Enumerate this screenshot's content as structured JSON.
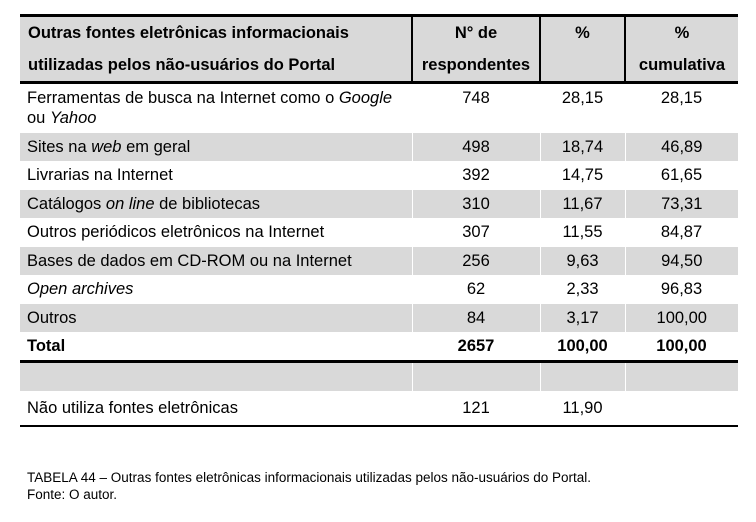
{
  "table": {
    "headers": {
      "col1_line1": "Outras fontes eletrônicas informacionais",
      "col1_line2": "utilizadas pelos não-usuários do Portal",
      "col2_line1": "N° de",
      "col2_line2": "respondentes",
      "col3_line1": "%",
      "col4_line1": "%",
      "col4_line2": "cumulativa"
    },
    "rows": [
      {
        "label_parts": [
          "Ferramentas de busca na Internet como o ",
          "Google",
          " ou ",
          "Yahoo"
        ],
        "respondents": "748",
        "percent": "28,15",
        "cumulative": "28,15"
      },
      {
        "label_parts": [
          "Sites na ",
          "web",
          " em geral"
        ],
        "respondents": "498",
        "percent": "18,74",
        "cumulative": "46,89"
      },
      {
        "label": "Livrarias na Internet",
        "respondents": "392",
        "percent": "14,75",
        "cumulative": "61,65"
      },
      {
        "label_parts": [
          "Catálogos ",
          "on line",
          " de bibliotecas"
        ],
        "respondents": "310",
        "percent": "11,67",
        "cumulative": "73,31"
      },
      {
        "label": "Outros periódicos eletrônicos na Internet",
        "respondents": "307",
        "percent": "11,55",
        "cumulative": "84,87"
      },
      {
        "label": "Bases de dados em CD-ROM ou na Internet",
        "respondents": "256",
        "percent": "9,63",
        "cumulative": "94,50"
      },
      {
        "label": "Open archives",
        "respondents": "62",
        "percent": "2,33",
        "cumulative": "96,83"
      },
      {
        "label": "Outros",
        "respondents": "84",
        "percent": "3,17",
        "cumulative": "100,00"
      }
    ],
    "total": {
      "label": "Total",
      "respondents": "2657",
      "percent": "100,00",
      "cumulative": "100,00"
    },
    "non_user": {
      "label": "Não utiliza fontes eletrônicas",
      "respondents": "121",
      "percent": "11,90"
    }
  },
  "caption": {
    "title": "TABELA 44 – Outras fontes eletrônicas informacionais utilizadas pelos não-usuários do Portal.",
    "source": "Fonte: O autor."
  }
}
